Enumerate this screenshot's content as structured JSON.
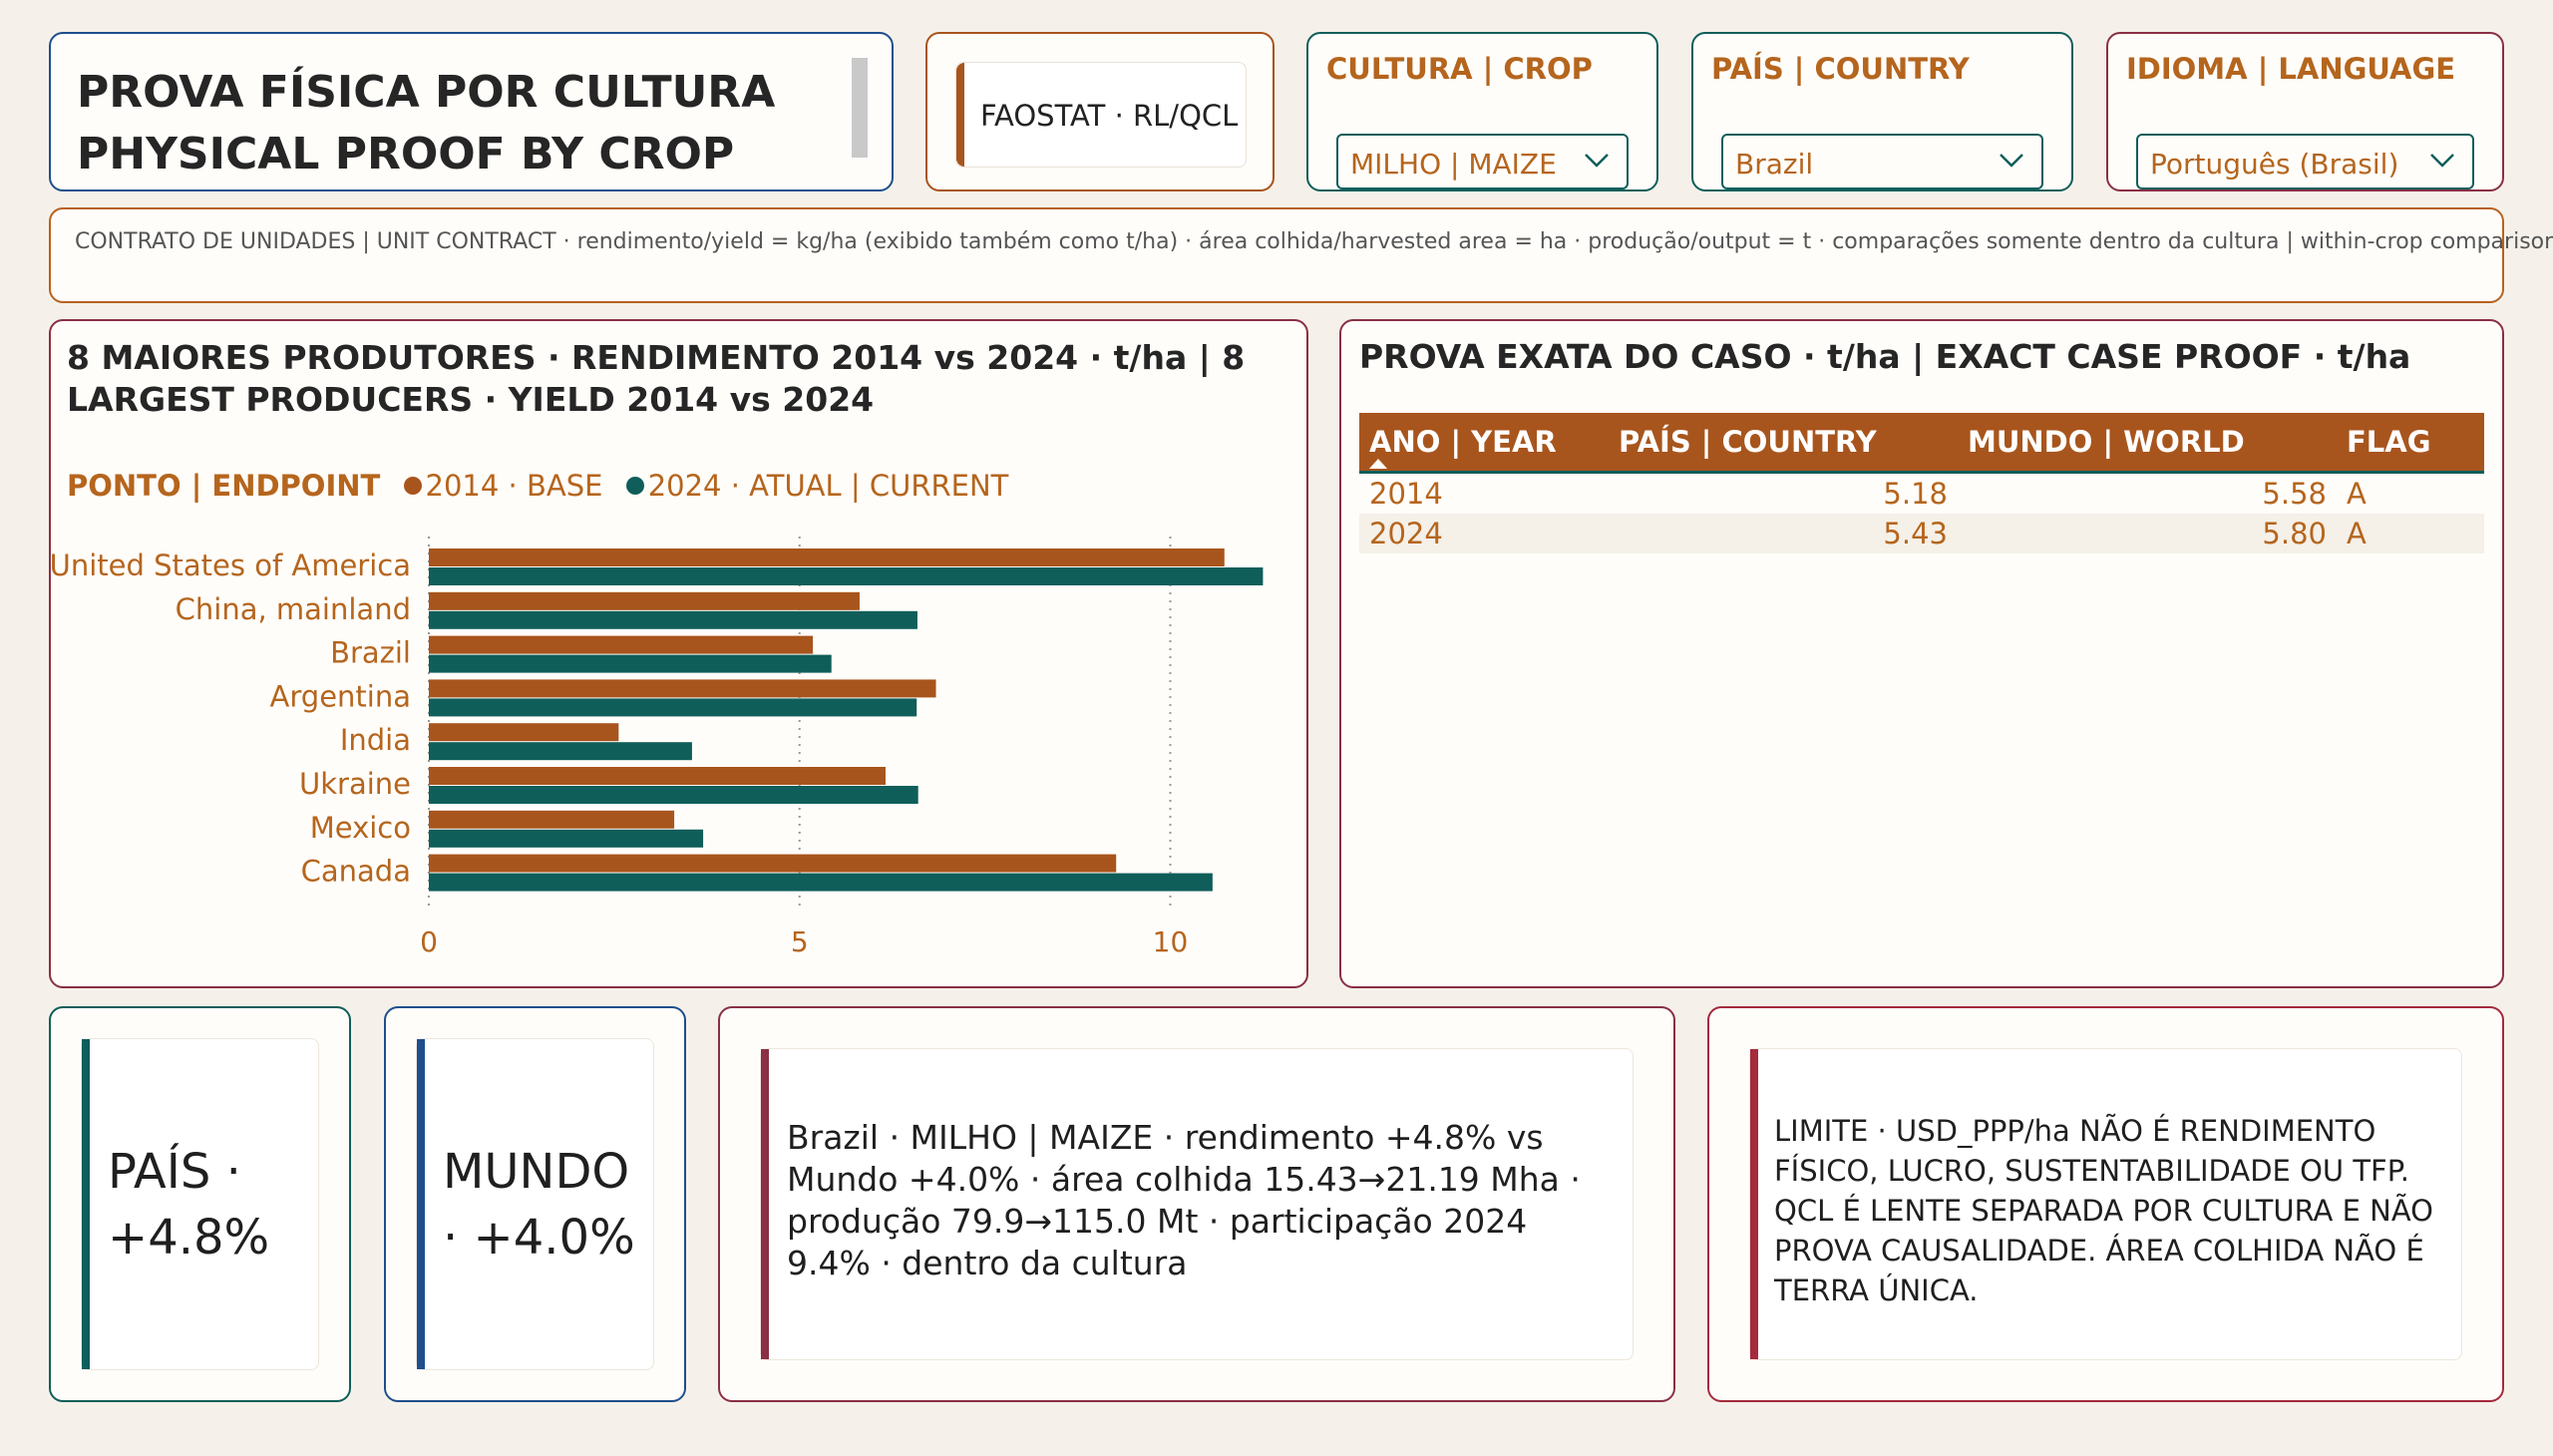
{
  "header": {
    "title_line1": "PROVA FÍSICA POR CULTURA",
    "title_line2": "PHYSICAL PROOF BY CROP",
    "source_label": "FAOSTAT · RL/QCL"
  },
  "slicers": {
    "crop": {
      "label": "CULTURA | CROP",
      "value": "MILHO | MAIZE"
    },
    "country": {
      "label": "PAÍS | COUNTRY",
      "value": "Brazil"
    },
    "language": {
      "label": "IDIOMA | LANGUAGE",
      "value": "Português (Brasil)"
    }
  },
  "unit_contract": "CONTRATO DE UNIDADES | UNIT CONTRACT · rendimento/yield = kg/ha (exibido também como t/ha) · área colhida/harvested area = ha · produção/output = t · comparações somente dentro da cultura | within-crop comparisons only",
  "chart": {
    "title": "8 MAIORES PRODUTORES · RENDIMENTO 2014 vs 2024 · t/ha | 8 LARGEST PRODUCERS · YIELD 2014 vs 2024",
    "legend_title": "PONTO | ENDPOINT",
    "legend_2014": "2014 · BASE",
    "legend_2024": "2024 · ATUAL | CURRENT"
  },
  "chart_data": {
    "type": "bar",
    "orientation": "horizontal",
    "categories": [
      "United States of America",
      "China, mainland",
      "Brazil",
      "Argentina",
      "India",
      "Ukraine",
      "Mexico",
      "Canada"
    ],
    "series": [
      {
        "name": "2014 · BASE",
        "color": "#a8551d",
        "values": [
          10.73,
          5.81,
          5.18,
          6.84,
          2.56,
          6.16,
          3.31,
          9.27
        ]
      },
      {
        "name": "2024 · ATUAL | CURRENT",
        "color": "#0f5e5a",
        "values": [
          11.25,
          6.59,
          5.43,
          6.58,
          3.55,
          6.6,
          3.7,
          10.57
        ]
      }
    ],
    "xlim": [
      0,
      11.5
    ],
    "xticks": [
      0,
      5,
      10
    ],
    "grid": "vertical dotted",
    "legend_position": "top-left"
  },
  "case_table": {
    "title": "PROVA EXATA DO CASO · t/ha | EXACT CASE PROOF · t/ha",
    "columns": [
      "ANO | YEAR",
      "PAÍS | COUNTRY",
      "MUNDO | WORLD",
      "FLAG"
    ],
    "rows": [
      [
        "2014",
        "5.18",
        "5.58",
        "A"
      ],
      [
        "2024",
        "5.43",
        "5.80",
        "A"
      ]
    ]
  },
  "kpis": {
    "country": "PAÍS · +4.8%",
    "world": "MUNDO · +4.0%"
  },
  "summary": "Brazil · MILHO | MAIZE · rendimento +4.8% vs Mundo +4.0% · área colhida 15.43→21.19 Mha · produção 79.9→115.0 Mt · participação 2024 9.4% · dentro da cultura",
  "limit": "LIMITE · USD_PPP/ha NÃO É RENDIMENTO FÍSICO, LUCRO, SUSTENTABILIDADE OU TFP. QCL É LENTE SEPARADA POR CULTURA E NÃO PROVA CAUSALIDADE. ÁREA COLHIDA NÃO É TERRA ÚNICA.",
  "colors": {
    "orange": "#a8551d",
    "teal": "#0f5e5a",
    "label_orange": "#b5651d",
    "navy": "#1e4f8c",
    "maroon": "#8a2f45",
    "background": "#f5f1ea"
  }
}
